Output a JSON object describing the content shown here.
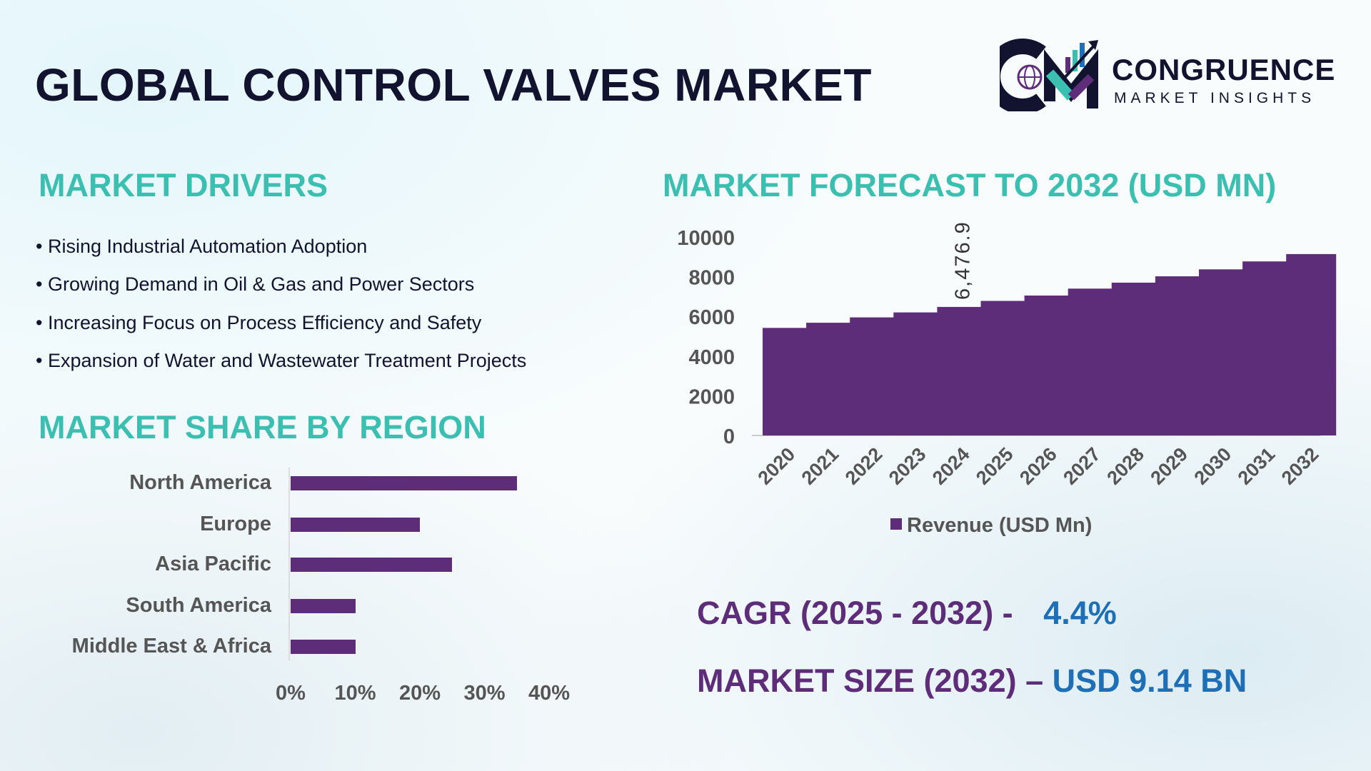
{
  "title": "GLOBAL CONTROL VALVES MARKET",
  "logo": {
    "name": "CONGRUENCE",
    "tagline": "MARKET INSIGHTS",
    "colors": [
      "#12132e",
      "#3bbfb1",
      "#1e6fb5",
      "#5e2d79"
    ]
  },
  "drivers": {
    "heading": "MARKET DRIVERS",
    "items": [
      "Rising Industrial Automation Adoption",
      "Growing Demand in Oil & Gas and Power Sectors",
      "Increasing Focus on Process Efficiency and Safety",
      "Expansion of Water and Wastewater Treatment Projects"
    ]
  },
  "colors": {
    "heading": "#3bbfb1",
    "bar": "#5e2d79",
    "accent_blue": "#1e6fb5"
  },
  "chart_data": [
    {
      "type": "bar",
      "orientation": "horizontal",
      "title": "MARKET SHARE BY REGION",
      "categories": [
        "North America",
        "Europe",
        "Asia Pacific",
        "South America",
        "Middle East & Africa"
      ],
      "values": [
        35,
        20,
        25,
        10,
        10
      ],
      "unit": "%",
      "xlim": [
        0,
        40
      ],
      "xticks": [
        "0%",
        "10%",
        "20%",
        "30%",
        "40%"
      ],
      "grid": false
    },
    {
      "type": "bar",
      "title": "MARKET FORECAST TO 2032 (USD MN)",
      "categories": [
        "2020",
        "2021",
        "2022",
        "2023",
        "2024",
        "2025",
        "2026",
        "2027",
        "2028",
        "2029",
        "2030",
        "2031",
        "2032"
      ],
      "series": [
        {
          "name": "Revenue (USD Mn)",
          "values": [
            5420,
            5680,
            5950,
            6200,
            6476.9,
            6780,
            7050,
            7400,
            7700,
            8020,
            8370,
            8770,
            9140
          ]
        }
      ],
      "ylim": [
        0,
        10000
      ],
      "yticks": [
        "0",
        "2000",
        "4000",
        "6000",
        "8000",
        "10000"
      ],
      "data_labels": [
        {
          "category": "2024",
          "text": "6,476.9"
        }
      ],
      "legend": "bottom",
      "grid": false
    }
  ],
  "stats": {
    "cagr_label": "CAGR (2025 - 2032) -",
    "cagr_value": "4.4%",
    "size_label": "MARKET SIZE (2032) –",
    "size_value": "USD 9.14 BN"
  }
}
